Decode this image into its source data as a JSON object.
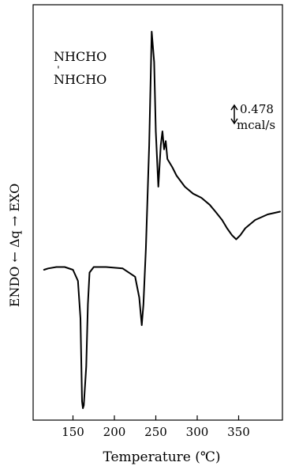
{
  "chart_data": {
    "type": "line",
    "title": "",
    "xlabel": "Temperature (℃)",
    "ylabel": "ENDO ← Δq → EXO",
    "xlim": [
      100,
      400
    ],
    "x_ticks": [
      "150",
      "200",
      "250",
      "300",
      "350"
    ],
    "y_units": "relative Δq (scale bar shown)",
    "grid": false,
    "annotations": {
      "compound_line1": "NHCHO",
      "compound_bond": "ˈ",
      "compound_line2": "NHCHO",
      "scale_value": "0.478",
      "scale_unit": "mcal/s"
    },
    "series": [
      {
        "points": [
          [
            115,
            0.0
          ],
          [
            120,
            0.01
          ],
          [
            130,
            0.02
          ],
          [
            140,
            0.02
          ],
          [
            150,
            0.0
          ],
          [
            156,
            -0.08
          ],
          [
            159,
            -0.35
          ],
          [
            161,
            -0.95
          ],
          [
            162,
            -1.0
          ],
          [
            163,
            -0.98
          ],
          [
            166,
            -0.7
          ],
          [
            168,
            -0.25
          ],
          [
            170,
            -0.02
          ],
          [
            175,
            0.02
          ],
          [
            190,
            0.02
          ],
          [
            210,
            0.01
          ],
          [
            225,
            -0.05
          ],
          [
            230,
            -0.2
          ],
          [
            233,
            -0.4
          ],
          [
            235,
            -0.25
          ],
          [
            238,
            0.15
          ],
          [
            242,
            0.9
          ],
          [
            245,
            1.72
          ],
          [
            248,
            1.5
          ],
          [
            250,
            1.0
          ],
          [
            253,
            0.6
          ],
          [
            256,
            0.9
          ],
          [
            258,
            1.0
          ],
          [
            260,
            0.87
          ],
          [
            262,
            0.93
          ],
          [
            264,
            0.8
          ],
          [
            270,
            0.74
          ],
          [
            275,
            0.68
          ],
          [
            285,
            0.6
          ],
          [
            295,
            0.55
          ],
          [
            305,
            0.52
          ],
          [
            315,
            0.47
          ],
          [
            322,
            0.42
          ],
          [
            330,
            0.36
          ],
          [
            336,
            0.3
          ],
          [
            342,
            0.25
          ],
          [
            347,
            0.22
          ],
          [
            352,
            0.25
          ],
          [
            358,
            0.3
          ],
          [
            370,
            0.36
          ],
          [
            385,
            0.4
          ],
          [
            400,
            0.42
          ]
        ]
      }
    ]
  }
}
